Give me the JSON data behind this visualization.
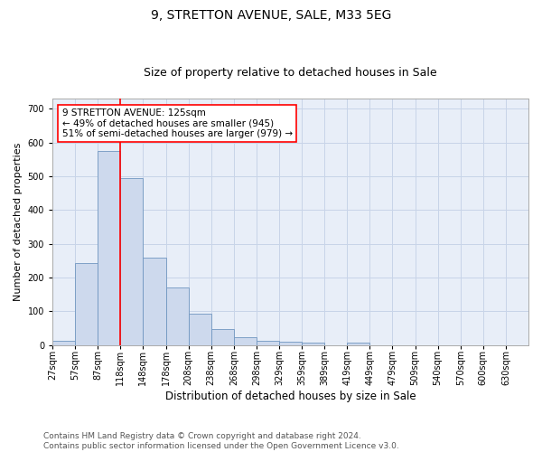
{
  "title1": "9, STRETTON AVENUE, SALE, M33 5EG",
  "title2": "Size of property relative to detached houses in Sale",
  "xlabel": "Distribution of detached houses by size in Sale",
  "ylabel": "Number of detached properties",
  "bar_values": [
    13,
    243,
    575,
    495,
    258,
    170,
    92,
    48,
    24,
    13,
    10,
    7,
    0,
    6,
    0,
    0,
    0,
    0,
    0,
    0,
    0
  ],
  "bar_labels": [
    "27sqm",
    "57sqm",
    "87sqm",
    "118sqm",
    "148sqm",
    "178sqm",
    "208sqm",
    "238sqm",
    "268sqm",
    "298sqm",
    "329sqm",
    "359sqm",
    "389sqm",
    "419sqm",
    "449sqm",
    "479sqm",
    "509sqm",
    "540sqm",
    "570sqm",
    "600sqm",
    "630sqm"
  ],
  "bar_color": "#cdd9ed",
  "bar_edge_color": "#7096c0",
  "vline_color": "red",
  "vline_x_index": 3,
  "annotation_text": "9 STRETTON AVENUE: 125sqm\n← 49% of detached houses are smaller (945)\n51% of semi-detached houses are larger (979) →",
  "ylim": [
    0,
    730
  ],
  "yticks": [
    0,
    100,
    200,
    300,
    400,
    500,
    600,
    700
  ],
  "grid_color": "#c8d4e8",
  "bg_color": "#e8eef8",
  "footnote": "Contains HM Land Registry data © Crown copyright and database right 2024.\nContains public sector information licensed under the Open Government Licence v3.0.",
  "title1_fontsize": 10,
  "title2_fontsize": 9,
  "xlabel_fontsize": 8.5,
  "ylabel_fontsize": 8,
  "tick_fontsize": 7,
  "annot_fontsize": 7.5,
  "footnote_fontsize": 6.5
}
